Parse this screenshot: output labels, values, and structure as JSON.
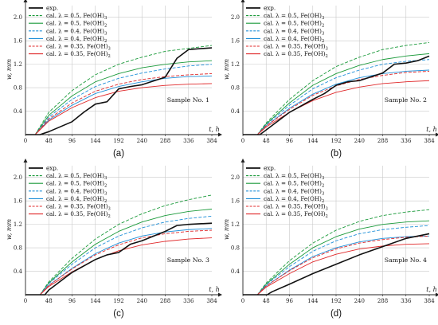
{
  "figure": {
    "y_label": "w, mm",
    "x_label": "t, h",
    "legend": [
      "exp.",
      "cal. λ = 0.5, Fe(OH)3",
      "cal. λ = 0.5, Fe(OH)2",
      "cal. λ = 0.4, Fe(OH)3",
      "cal. λ = 0.4, Fe(OH)2",
      "cal. λ = 0.35, Fe(OH)3",
      "cal. λ = 0.35, Fe(OH)2"
    ],
    "series_styles": [
      {
        "color": "#111111",
        "dash": "",
        "width": 1.6
      },
      {
        "color": "#1a9a3a",
        "dash": "4,2",
        "width": 0.9
      },
      {
        "color": "#1a9a3a",
        "dash": "",
        "width": 0.9
      },
      {
        "color": "#1e8fd8",
        "dash": "4,2",
        "width": 0.9
      },
      {
        "color": "#1e8fd8",
        "dash": "",
        "width": 0.9
      },
      {
        "color": "#e0282a",
        "dash": "4,2",
        "width": 0.9
      },
      {
        "color": "#e0282a",
        "dash": "",
        "width": 0.9
      }
    ]
  },
  "chart_data": [
    {
      "type": "line",
      "panel_label": "(a)",
      "annotation": "Sample No. 1",
      "xticks": [
        0,
        48,
        96,
        144,
        192,
        240,
        288,
        336,
        384
      ],
      "yticks": [
        0.4,
        0.8,
        1.2,
        1.6,
        2.0
      ],
      "xlim": [
        0,
        384
      ],
      "ylim": [
        0,
        2.2
      ],
      "grid": true,
      "legend_position": "top-left",
      "series": [
        {
          "name": "exp.",
          "x": [
            0,
            30,
            48,
            96,
            120,
            144,
            168,
            192,
            216,
            240,
            288,
            312,
            336,
            384
          ],
          "y": [
            0,
            0,
            0.05,
            0.22,
            0.38,
            0.52,
            0.56,
            0.78,
            0.82,
            0.85,
            0.98,
            1.3,
            1.45,
            1.48
          ]
        },
        {
          "name": "cal. λ = 0.5, Fe(OH)3",
          "x": [
            0,
            20,
            48,
            96,
            144,
            192,
            240,
            288,
            336,
            384
          ],
          "y": [
            0,
            0,
            0.38,
            0.75,
            1.02,
            1.2,
            1.32,
            1.42,
            1.47,
            1.52
          ]
        },
        {
          "name": "cal. λ = 0.5, Fe(OH)2",
          "x": [
            0,
            20,
            48,
            96,
            144,
            192,
            240,
            288,
            336,
            384
          ],
          "y": [
            0,
            0,
            0.33,
            0.66,
            0.9,
            1.04,
            1.14,
            1.2,
            1.24,
            1.26
          ]
        },
        {
          "name": "cal. λ = 0.4, Fe(OH)3",
          "x": [
            0,
            20,
            48,
            96,
            144,
            192,
            240,
            288,
            336,
            384
          ],
          "y": [
            0,
            0,
            0.3,
            0.6,
            0.82,
            0.96,
            1.05,
            1.12,
            1.17,
            1.2
          ]
        },
        {
          "name": "cal. λ = 0.4, Fe(OH)2",
          "x": [
            0,
            20,
            48,
            96,
            144,
            192,
            240,
            288,
            336,
            384
          ],
          "y": [
            0,
            0,
            0.25,
            0.5,
            0.7,
            0.82,
            0.9,
            0.96,
            0.99,
            1.0
          ]
        },
        {
          "name": "cal. λ = 0.35, Fe(OH)3",
          "x": [
            0,
            20,
            48,
            96,
            144,
            192,
            240,
            288,
            336,
            384
          ],
          "y": [
            0,
            0,
            0.27,
            0.54,
            0.74,
            0.86,
            0.94,
            0.99,
            1.02,
            1.04
          ]
        },
        {
          "name": "cal. λ = 0.35, Fe(OH)2",
          "x": [
            0,
            20,
            48,
            96,
            144,
            192,
            240,
            288,
            336,
            384
          ],
          "y": [
            0,
            0,
            0.23,
            0.46,
            0.63,
            0.74,
            0.8,
            0.84,
            0.86,
            0.87
          ]
        }
      ]
    },
    {
      "type": "line",
      "panel_label": "(b)",
      "annotation": "Sample No. 2",
      "xticks": [
        0,
        48,
        96,
        144,
        192,
        240,
        288,
        336,
        384
      ],
      "yticks": [
        0.4,
        0.8,
        1.2,
        1.6,
        2.0
      ],
      "xlim": [
        0,
        384
      ],
      "ylim": [
        0,
        2.2
      ],
      "grid": true,
      "legend_position": "top-left",
      "series": [
        {
          "name": "exp.",
          "x": [
            0,
            35,
            48,
            96,
            144,
            168,
            192,
            216,
            240,
            288,
            312,
            336,
            360,
            384
          ],
          "y": [
            0,
            0,
            0.08,
            0.38,
            0.6,
            0.7,
            0.84,
            0.9,
            0.92,
            1.05,
            1.2,
            1.22,
            1.26,
            1.34
          ]
        },
        {
          "name": "cal. λ = 0.5, Fe(OH)3",
          "x": [
            0,
            30,
            48,
            96,
            144,
            192,
            240,
            288,
            336,
            384
          ],
          "y": [
            0,
            0,
            0.2,
            0.6,
            0.92,
            1.16,
            1.32,
            1.45,
            1.52,
            1.57
          ]
        },
        {
          "name": "cal. λ = 0.5, Fe(OH)2",
          "x": [
            0,
            30,
            48,
            96,
            144,
            192,
            240,
            288,
            336,
            384
          ],
          "y": [
            0,
            0,
            0.18,
            0.54,
            0.84,
            1.04,
            1.18,
            1.28,
            1.34,
            1.38
          ]
        },
        {
          "name": "cal. λ = 0.4, Fe(OH)3",
          "x": [
            0,
            30,
            48,
            96,
            144,
            192,
            240,
            288,
            336,
            384
          ],
          "y": [
            0,
            0,
            0.17,
            0.5,
            0.78,
            0.97,
            1.1,
            1.2,
            1.25,
            1.28
          ]
        },
        {
          "name": "cal. λ = 0.4, Fe(OH)2",
          "x": [
            0,
            30,
            48,
            96,
            144,
            192,
            240,
            288,
            336,
            384
          ],
          "y": [
            0,
            0,
            0.15,
            0.45,
            0.69,
            0.86,
            0.97,
            1.04,
            1.08,
            1.1
          ]
        },
        {
          "name": "cal. λ = 0.35, Fe(OH)3",
          "x": [
            0,
            30,
            48,
            96,
            144,
            192,
            240,
            288,
            336,
            384
          ],
          "y": [
            0,
            0,
            0.15,
            0.43,
            0.67,
            0.83,
            0.94,
            1.01,
            1.06,
            1.08
          ]
        },
        {
          "name": "cal. λ = 0.35, Fe(OH)2",
          "x": [
            0,
            30,
            48,
            96,
            144,
            192,
            240,
            288,
            336,
            384
          ],
          "y": [
            0,
            0,
            0.13,
            0.38,
            0.58,
            0.72,
            0.81,
            0.87,
            0.9,
            0.92
          ]
        }
      ]
    },
    {
      "type": "line",
      "panel_label": "(c)",
      "annotation": "Sample No. 3",
      "xticks": [
        0,
        48,
        96,
        144,
        192,
        240,
        288,
        336,
        384
      ],
      "yticks": [
        0.4,
        0.8,
        1.2,
        1.6,
        2.0
      ],
      "xlim": [
        0,
        384
      ],
      "ylim": [
        0,
        2.2
      ],
      "grid": true,
      "legend_position": "top-left",
      "series": [
        {
          "name": "exp.",
          "x": [
            0,
            40,
            48,
            96,
            144,
            168,
            192,
            216,
            240,
            288,
            312,
            336,
            384
          ],
          "y": [
            0,
            0,
            0.08,
            0.38,
            0.6,
            0.68,
            0.72,
            0.86,
            0.92,
            1.08,
            1.18,
            1.2,
            1.22
          ]
        },
        {
          "name": "cal. λ = 0.5, Fe(OH)3",
          "x": [
            0,
            30,
            48,
            96,
            144,
            192,
            240,
            288,
            336,
            384
          ],
          "y": [
            0,
            0,
            0.22,
            0.62,
            0.95,
            1.2,
            1.38,
            1.52,
            1.62,
            1.7
          ]
        },
        {
          "name": "cal. λ = 0.5, Fe(OH)2",
          "x": [
            0,
            30,
            48,
            96,
            144,
            192,
            240,
            288,
            336,
            384
          ],
          "y": [
            0,
            0,
            0.2,
            0.56,
            0.86,
            1.08,
            1.24,
            1.35,
            1.42,
            1.46
          ]
        },
        {
          "name": "cal. λ = 0.4, Fe(OH)3",
          "x": [
            0,
            30,
            48,
            96,
            144,
            192,
            240,
            288,
            336,
            384
          ],
          "y": [
            0,
            0,
            0.19,
            0.52,
            0.8,
            1.0,
            1.14,
            1.24,
            1.3,
            1.34
          ]
        },
        {
          "name": "cal. λ = 0.4, Fe(OH)2",
          "x": [
            0,
            30,
            48,
            96,
            144,
            192,
            240,
            288,
            336,
            384
          ],
          "y": [
            0,
            0,
            0.16,
            0.45,
            0.7,
            0.88,
            1.0,
            1.07,
            1.11,
            1.13
          ]
        },
        {
          "name": "cal. λ = 0.35, Fe(OH)3",
          "x": [
            0,
            30,
            48,
            96,
            144,
            192,
            240,
            288,
            336,
            384
          ],
          "y": [
            0,
            0,
            0.16,
            0.44,
            0.68,
            0.85,
            0.97,
            1.04,
            1.08,
            1.1
          ]
        },
        {
          "name": "cal. λ = 0.35, Fe(OH)2",
          "x": [
            0,
            30,
            48,
            96,
            144,
            192,
            240,
            288,
            336,
            384
          ],
          "y": [
            0,
            0,
            0.14,
            0.39,
            0.6,
            0.75,
            0.85,
            0.91,
            0.95,
            0.97
          ]
        }
      ]
    },
    {
      "type": "line",
      "panel_label": "(d)",
      "annotation": "Sample No. 4",
      "xticks": [
        0,
        48,
        96,
        144,
        192,
        240,
        288,
        336,
        384
      ],
      "yticks": [
        0.4,
        0.8,
        1.2,
        1.6,
        2.0
      ],
      "xlim": [
        0,
        384
      ],
      "ylim": [
        0,
        2.2
      ],
      "grid": true,
      "legend_position": "top-left",
      "series": [
        {
          "name": "exp.",
          "x": [
            0,
            50,
            60,
            96,
            144,
            192,
            240,
            288,
            336,
            384
          ],
          "y": [
            0,
            0,
            0.05,
            0.18,
            0.36,
            0.52,
            0.68,
            0.82,
            0.96,
            1.04
          ]
        },
        {
          "name": "cal. λ = 0.5, Fe(OH)3",
          "x": [
            0,
            30,
            48,
            96,
            144,
            192,
            240,
            288,
            336,
            384
          ],
          "y": [
            0,
            0,
            0.2,
            0.58,
            0.88,
            1.1,
            1.25,
            1.35,
            1.41,
            1.45
          ]
        },
        {
          "name": "cal. λ = 0.5, Fe(OH)2",
          "x": [
            0,
            30,
            48,
            96,
            144,
            192,
            240,
            288,
            336,
            384
          ],
          "y": [
            0,
            0,
            0.18,
            0.52,
            0.8,
            0.99,
            1.12,
            1.2,
            1.24,
            1.26
          ]
        },
        {
          "name": "cal. λ = 0.4, Fe(OH)3",
          "x": [
            0,
            30,
            48,
            96,
            144,
            192,
            240,
            288,
            336,
            384
          ],
          "y": [
            0,
            0,
            0.17,
            0.48,
            0.74,
            0.92,
            1.04,
            1.11,
            1.15,
            1.18
          ]
        },
        {
          "name": "cal. λ = 0.4, Fe(OH)2",
          "x": [
            0,
            30,
            48,
            96,
            144,
            192,
            240,
            288,
            336,
            384
          ],
          "y": [
            0,
            0,
            0.15,
            0.42,
            0.65,
            0.8,
            0.9,
            0.96,
            0.99,
            1.0
          ]
        },
        {
          "name": "cal. λ = 0.35, Fe(OH)3",
          "x": [
            0,
            30,
            48,
            96,
            144,
            192,
            240,
            288,
            336,
            384
          ],
          "y": [
            0,
            0,
            0.15,
            0.41,
            0.63,
            0.78,
            0.88,
            0.94,
            0.98,
            1.0
          ]
        },
        {
          "name": "cal. λ = 0.35, Fe(OH)2",
          "x": [
            0,
            30,
            48,
            96,
            144,
            192,
            240,
            288,
            336,
            384
          ],
          "y": [
            0,
            0,
            0.13,
            0.36,
            0.56,
            0.69,
            0.78,
            0.83,
            0.86,
            0.87
          ]
        }
      ]
    }
  ]
}
